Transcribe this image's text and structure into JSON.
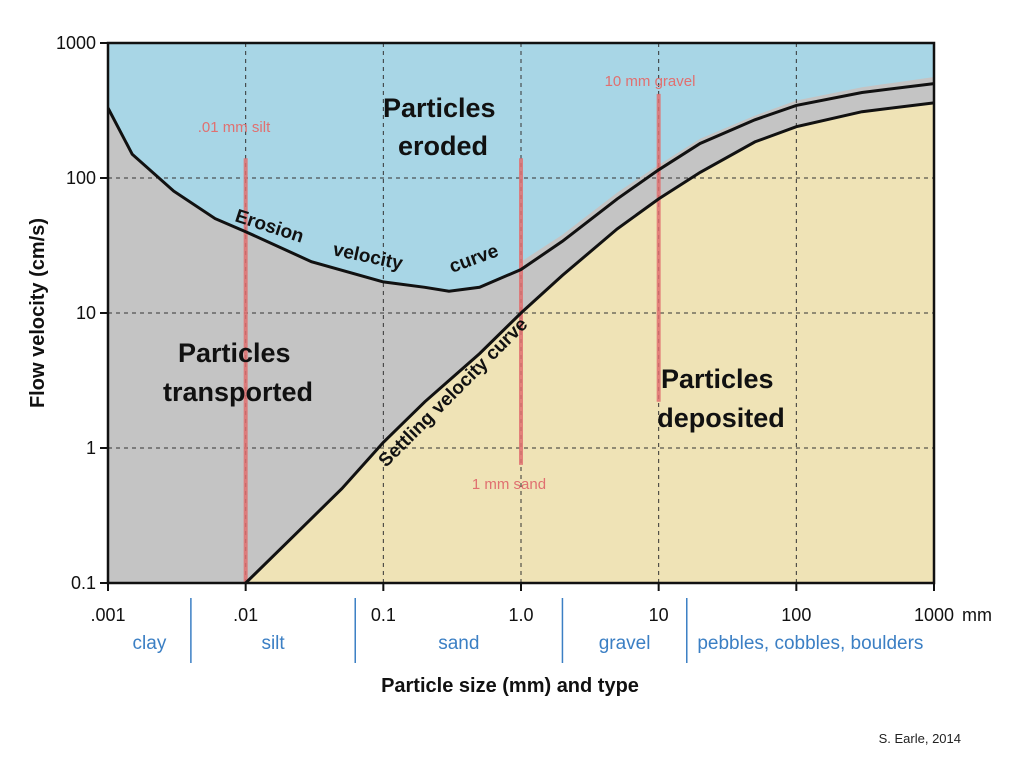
{
  "colors": {
    "eroded": "#a8d6e6",
    "transported": "#c4c4c4",
    "deposited": "#efe3b6",
    "markers": "#e07070",
    "types": "#3b7fc4",
    "curve": "#111111"
  },
  "chart_data": {
    "type": "area",
    "title": "",
    "xlabel": "Particle size (mm) and type",
    "ylabel": "Flow velocity (cm/s)",
    "x_scale": "log",
    "y_scale": "log",
    "xlim": [
      0.001,
      1000
    ],
    "ylim": [
      0.1,
      1000
    ],
    "grid": true,
    "x_ticks": [
      ".001",
      ".01",
      "0.1",
      "1.0",
      "10",
      "100",
      "1000"
    ],
    "x_tick_values": [
      0.001,
      0.01,
      0.1,
      1,
      10,
      100,
      1000
    ],
    "x_unit": "mm",
    "y_ticks": [
      "0.1",
      "1",
      "10",
      "100",
      "1000"
    ],
    "y_tick_values": [
      0.1,
      1,
      10,
      100,
      1000
    ],
    "series": [
      {
        "name": "Erosion velocity curve",
        "labels": [
          "Erosion",
          "velocity",
          "curve"
        ],
        "x": [
          0.001,
          0.0015,
          0.003,
          0.006,
          0.01,
          0.03,
          0.1,
          0.2,
          0.3,
          0.5,
          1,
          2,
          5,
          10,
          20,
          50,
          100,
          300,
          1000
        ],
        "y": [
          330,
          150,
          80,
          50,
          40,
          24,
          17,
          15.5,
          14.5,
          15.5,
          21,
          34,
          70,
          115,
          180,
          270,
          345,
          430,
          500
        ]
      },
      {
        "name": "Upper margin of erosion curve band",
        "x": [
          1,
          2,
          5,
          10,
          20,
          50,
          100,
          300,
          1000
        ],
        "y": [
          24,
          38,
          78,
          125,
          195,
          290,
          375,
          470,
          560
        ]
      },
      {
        "name": "Settling velocity curve",
        "x": [
          0.01,
          0.02,
          0.05,
          0.1,
          0.2,
          0.5,
          1,
          2,
          5,
          10,
          20,
          50,
          100,
          300,
          1000
        ],
        "y": [
          0.1,
          0.2,
          0.5,
          1.1,
          2.2,
          5,
          10,
          19,
          42,
          70,
          110,
          185,
          240,
          310,
          360
        ]
      }
    ],
    "regions": [
      {
        "name": "eroded",
        "lines": [
          "Particles",
          "eroded"
        ]
      },
      {
        "name": "transported",
        "lines": [
          "Particles",
          "transported"
        ]
      },
      {
        "name": "deposited",
        "lines": [
          "Particles",
          "deposited"
        ]
      }
    ],
    "markers": [
      {
        "label": ".01 mm silt",
        "x": 0.01,
        "y_from": 0.1,
        "y_to": 140
      },
      {
        "label": "1 mm sand",
        "x": 1,
        "y_from": 0.75,
        "y_to": 140
      },
      {
        "label": "10 mm gravel",
        "x": 10,
        "y_from": 2.2,
        "y_to": 420
      }
    ],
    "particle_types": [
      {
        "label": "clay",
        "from": 0.001,
        "to": 0.004
      },
      {
        "label": "silt",
        "from": 0.004,
        "to": 0.0625
      },
      {
        "label": "sand",
        "from": 0.0625,
        "to": 2
      },
      {
        "label": "gravel",
        "from": 2,
        "to": 16
      },
      {
        "label": "pebbles, cobbles, boulders",
        "from": 16,
        "to": 1000
      }
    ]
  },
  "credit": "S. Earle, 2014"
}
